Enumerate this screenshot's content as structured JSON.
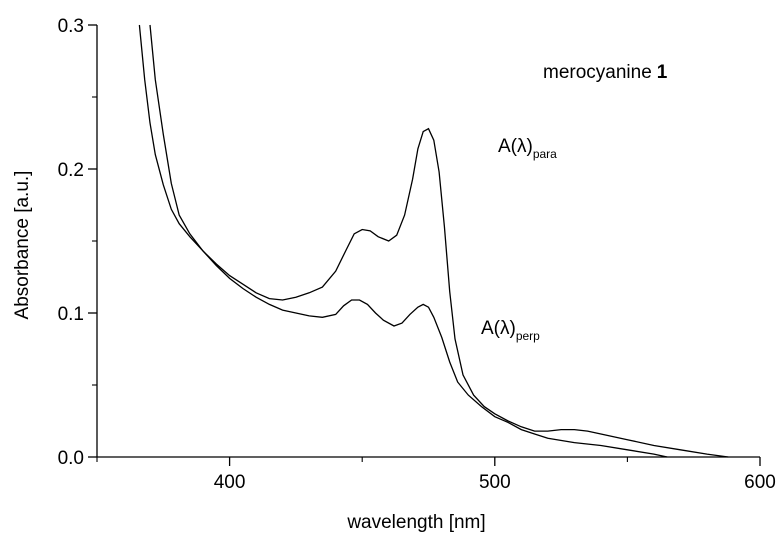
{
  "chart_data": {
    "type": "line",
    "title": "",
    "xlabel": "wavelength [nm]",
    "ylabel": "Absorbance [a.u.]",
    "xlim": [
      350,
      600
    ],
    "ylim": [
      0.0,
      0.3
    ],
    "x_ticks": [
      400,
      500,
      600
    ],
    "y_ticks": [
      0.0,
      0.1,
      0.2,
      0.3
    ],
    "x_tick_labels": [
      "400",
      "500",
      "600"
    ],
    "y_tick_labels": [
      "0.0",
      "0.1",
      "0.2",
      "0.3"
    ],
    "grid": false,
    "annotations": {
      "compound_label": "merocyanine",
      "compound_number": "1",
      "para_main": "A(λ)",
      "para_sub": "para",
      "perp_main": "A(λ)",
      "perp_sub": "perp"
    },
    "series": [
      {
        "values": [
          [
            366,
            0.3
          ],
          [
            368,
            0.262
          ],
          [
            370,
            0.232
          ],
          [
            372,
            0.21
          ],
          [
            375,
            0.189
          ],
          [
            378,
            0.172
          ],
          [
            381,
            0.162
          ],
          [
            385,
            0.153
          ],
          [
            390,
            0.143
          ],
          [
            395,
            0.134
          ],
          [
            400,
            0.126
          ],
          [
            405,
            0.12
          ],
          [
            410,
            0.114
          ],
          [
            415,
            0.11
          ],
          [
            420,
            0.109
          ],
          [
            425,
            0.111
          ],
          [
            430,
            0.114
          ],
          [
            435,
            0.118
          ],
          [
            440,
            0.129
          ],
          [
            444,
            0.144
          ],
          [
            447,
            0.155
          ],
          [
            450,
            0.158
          ],
          [
            453,
            0.157
          ],
          [
            456,
            0.153
          ],
          [
            460,
            0.15
          ],
          [
            463,
            0.154
          ],
          [
            466,
            0.168
          ],
          [
            469,
            0.193
          ],
          [
            471,
            0.214
          ],
          [
            473,
            0.226
          ],
          [
            475,
            0.228
          ],
          [
            477,
            0.22
          ],
          [
            479,
            0.198
          ],
          [
            481,
            0.16
          ],
          [
            483,
            0.115
          ],
          [
            485,
            0.082
          ],
          [
            488,
            0.057
          ],
          [
            492,
            0.043
          ],
          [
            496,
            0.035
          ],
          [
            500,
            0.03
          ],
          [
            505,
            0.025
          ],
          [
            510,
            0.021
          ],
          [
            515,
            0.018
          ],
          [
            520,
            0.018
          ],
          [
            525,
            0.019
          ],
          [
            530,
            0.019
          ],
          [
            535,
            0.018
          ],
          [
            540,
            0.016
          ],
          [
            550,
            0.012
          ],
          [
            560,
            0.008
          ],
          [
            570,
            0.005
          ],
          [
            580,
            0.002
          ],
          [
            588,
            0.0
          ]
        ]
      },
      {
        "values": [
          [
            370,
            0.3
          ],
          [
            372,
            0.262
          ],
          [
            375,
            0.224
          ],
          [
            378,
            0.19
          ],
          [
            381,
            0.168
          ],
          [
            385,
            0.155
          ],
          [
            390,
            0.143
          ],
          [
            395,
            0.133
          ],
          [
            400,
            0.124
          ],
          [
            405,
            0.117
          ],
          [
            410,
            0.111
          ],
          [
            415,
            0.106
          ],
          [
            420,
            0.102
          ],
          [
            425,
            0.1
          ],
          [
            430,
            0.098
          ],
          [
            435,
            0.097
          ],
          [
            440,
            0.099
          ],
          [
            443,
            0.105
          ],
          [
            446,
            0.109
          ],
          [
            449,
            0.109
          ],
          [
            452,
            0.106
          ],
          [
            455,
            0.1
          ],
          [
            458,
            0.095
          ],
          [
            462,
            0.091
          ],
          [
            465,
            0.093
          ],
          [
            468,
            0.099
          ],
          [
            471,
            0.104
          ],
          [
            473,
            0.106
          ],
          [
            475,
            0.104
          ],
          [
            477,
            0.097
          ],
          [
            480,
            0.083
          ],
          [
            483,
            0.066
          ],
          [
            486,
            0.052
          ],
          [
            490,
            0.043
          ],
          [
            495,
            0.035
          ],
          [
            500,
            0.028
          ],
          [
            505,
            0.024
          ],
          [
            510,
            0.019
          ],
          [
            515,
            0.016
          ],
          [
            520,
            0.013
          ],
          [
            530,
            0.01
          ],
          [
            540,
            0.008
          ],
          [
            550,
            0.005
          ],
          [
            560,
            0.002
          ],
          [
            565,
            0.0
          ]
        ]
      }
    ]
  }
}
